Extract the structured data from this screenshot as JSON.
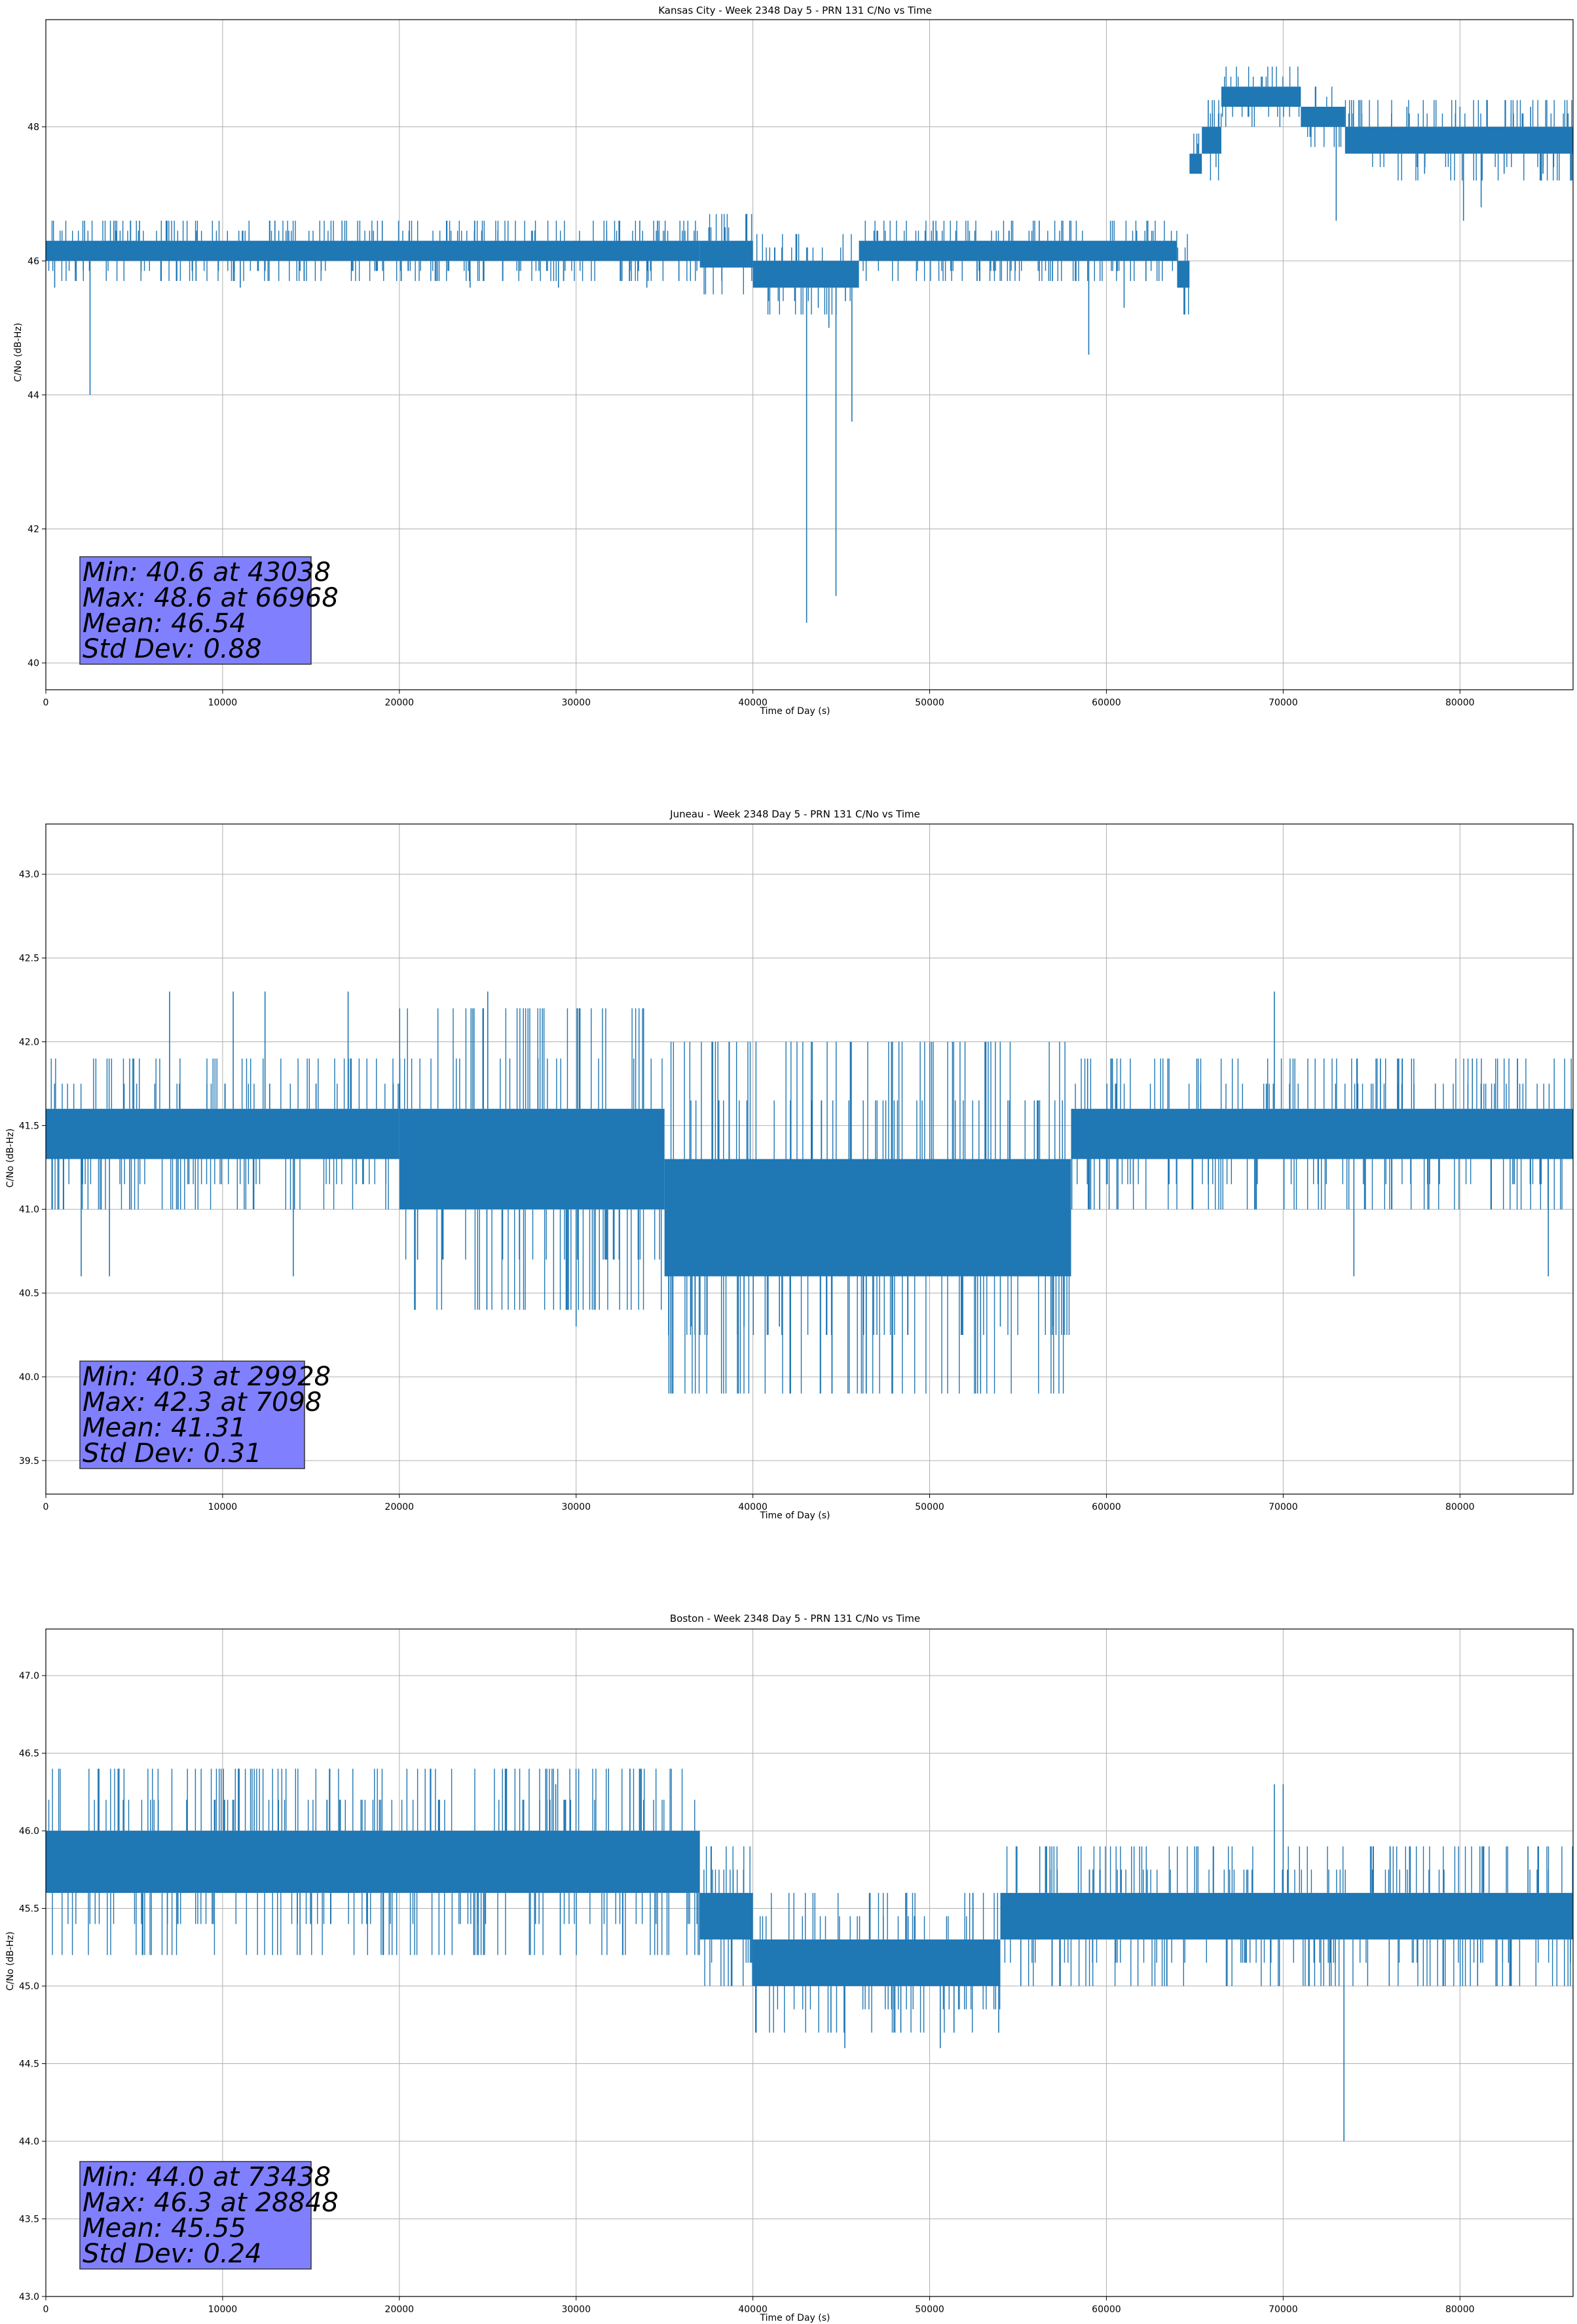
{
  "chart_data": [
    {
      "type": "line",
      "title": "Kansas City - Week 2348 Day 5 - PRN 131 C/No vs Time",
      "xlabel": "Time of Day (s)",
      "ylabel": "C/No (dB-Hz)",
      "xlim": [
        0,
        86400
      ],
      "ylim": [
        39.6,
        49.6
      ],
      "xticks": [
        0,
        10000,
        20000,
        30000,
        40000,
        50000,
        60000,
        70000,
        80000
      ],
      "yticks": [
        40,
        42,
        44,
        46,
        48
      ],
      "yticks_labels": [
        "40",
        "42",
        "44",
        "46",
        "48"
      ],
      "grid": true,
      "color": "#1f77b4",
      "band_segments": [
        {
          "x": [
            0,
            37000
          ],
          "low": 46.0,
          "high": 46.3
        },
        {
          "x": [
            37000,
            40000
          ],
          "low": 45.9,
          "high": 46.3
        },
        {
          "x": [
            40000,
            46000
          ],
          "low": 45.6,
          "high": 46.0
        },
        {
          "x": [
            46000,
            64000
          ],
          "low": 46.0,
          "high": 46.3
        },
        {
          "x": [
            64000,
            64700
          ],
          "low": 45.6,
          "high": 46.0
        },
        {
          "x": [
            64700,
            65400
          ],
          "low": 47.3,
          "high": 47.6
        },
        {
          "x": [
            65400,
            66500
          ],
          "low": 47.6,
          "high": 48.0
        },
        {
          "x": [
            66500,
            71000
          ],
          "low": 48.3,
          "high": 48.6
        },
        {
          "x": [
            71000,
            73500
          ],
          "low": 48.0,
          "high": 48.3
        },
        {
          "x": [
            73500,
            86400
          ],
          "low": 47.6,
          "high": 48.0
        }
      ],
      "upper_spikes": [
        [
          5300,
          46.6
        ],
        [
          33600,
          46.6
        ],
        [
          34600,
          46.6
        ],
        [
          50200,
          46.6
        ],
        [
          56200,
          46.6
        ],
        [
          77000,
          48.3
        ],
        [
          80000,
          48.3
        ],
        [
          84000,
          48.3
        ]
      ],
      "lower_spikes": [
        [
          500,
          45.6
        ],
        [
          2500,
          44.0
        ],
        [
          11000,
          45.6
        ],
        [
          24000,
          45.6
        ],
        [
          29000,
          45.6
        ],
        [
          34000,
          45.6
        ],
        [
          43038,
          40.6
        ],
        [
          43700,
          45.3
        ],
        [
          44300,
          45.0
        ],
        [
          44700,
          41.0
        ],
        [
          45600,
          43.6
        ],
        [
          59000,
          44.6
        ],
        [
          61000,
          45.3
        ],
        [
          73000,
          46.6
        ],
        [
          78000,
          47.3
        ],
        [
          80200,
          46.6
        ],
        [
          81200,
          46.8
        ],
        [
          82500,
          47.3
        ],
        [
          84700,
          47.3
        ]
      ],
      "stats": {
        "line1": "Min: 40.6 at 43038",
        "line2": "Max: 48.6 at 66968",
        "line3": "Mean: 46.54",
        "line4": "Std Dev: 0.88"
      }
    },
    {
      "type": "line",
      "title": "Juneau - Week 2348 Day 5 - PRN 131 C/No vs Time",
      "xlabel": "Time of Day (s)",
      "ylabel": "C/No (dB-Hz)",
      "xlim": [
        0,
        86400
      ],
      "ylim": [
        39.3,
        43.3
      ],
      "xticks": [
        0,
        10000,
        20000,
        30000,
        40000,
        50000,
        60000,
        70000,
        80000
      ],
      "yticks": [
        39.5,
        40.0,
        40.5,
        41.0,
        41.5,
        42.0,
        42.5,
        43.0
      ],
      "yticks_labels": [
        "39.5",
        "40.0",
        "40.5",
        "41.0",
        "41.5",
        "42.0",
        "42.5",
        "43.0"
      ],
      "grid": true,
      "color": "#1f77b4",
      "band_segments": [
        {
          "x": [
            0,
            20000
          ],
          "low": 41.3,
          "high": 41.6
        },
        {
          "x": [
            20000,
            35000
          ],
          "low": 41.0,
          "high": 41.6
        },
        {
          "x": [
            35000,
            58000
          ],
          "low": 40.6,
          "high": 41.3
        },
        {
          "x": [
            58000,
            86400
          ],
          "low": 41.3,
          "high": 41.6
        }
      ],
      "upper_spikes": [
        [
          7000,
          42.3
        ],
        [
          10600,
          42.3
        ],
        [
          12400,
          42.3
        ],
        [
          17100,
          42.3
        ],
        [
          25000,
          42.3
        ],
        [
          69500,
          42.3
        ]
      ],
      "lower_spikes": [
        [
          2000,
          40.6
        ],
        [
          3600,
          40.6
        ],
        [
          14000,
          40.6
        ],
        [
          30000,
          40.3
        ],
        [
          36500,
          40.3
        ],
        [
          39500,
          40.3
        ],
        [
          41500,
          40.3
        ],
        [
          54000,
          40.3
        ],
        [
          57000,
          40.3
        ],
        [
          74000,
          40.6
        ],
        [
          85000,
          40.6
        ]
      ],
      "stats": {
        "line1": "Min: 40.3 at 29928",
        "line2": "Max: 42.3 at 7098",
        "line3": "Mean: 41.31",
        "line4": "Std Dev: 0.31"
      }
    },
    {
      "type": "line",
      "title": "Boston - Week 2348 Day 5 - PRN 131 C/No vs Time",
      "xlabel": "Time of Day (s)",
      "ylabel": "C/No (dB-Hz)",
      "xlim": [
        0,
        86400
      ],
      "ylim": [
        43.0,
        47.3
      ],
      "xticks": [
        0,
        10000,
        20000,
        30000,
        40000,
        50000,
        60000,
        70000,
        80000
      ],
      "yticks": [
        43.0,
        43.5,
        44.0,
        44.5,
        45.0,
        45.5,
        46.0,
        46.5,
        47.0
      ],
      "yticks_labels": [
        "43.0",
        "43.5",
        "44.0",
        "44.5",
        "45.0",
        "45.5",
        "46.0",
        "46.5",
        "47.0"
      ],
      "grid": true,
      "color": "#1f77b4",
      "band_segments": [
        {
          "x": [
            0,
            37000
          ],
          "low": 45.6,
          "high": 46.0
        },
        {
          "x": [
            37000,
            40000
          ],
          "low": 45.3,
          "high": 45.6
        },
        {
          "x": [
            40000,
            54000
          ],
          "low": 45.0,
          "high": 45.3
        },
        {
          "x": [
            54000,
            86400
          ],
          "low": 45.3,
          "high": 45.6
        }
      ],
      "upper_spikes": [
        [
          28848,
          46.3
        ],
        [
          69500,
          46.3
        ],
        [
          70000,
          46.3
        ]
      ],
      "lower_spikes": [
        [
          45200,
          44.6
        ],
        [
          50600,
          44.6
        ],
        [
          73438,
          44.0
        ],
        [
          76000,
          45.0
        ],
        [
          81000,
          45.0
        ]
      ],
      "stats": {
        "line1": "Min: 44.0 at 73438",
        "line2": "Max: 46.3 at 28848",
        "line3": "Mean: 45.55",
        "line4": "Std Dev: 0.24"
      }
    }
  ]
}
